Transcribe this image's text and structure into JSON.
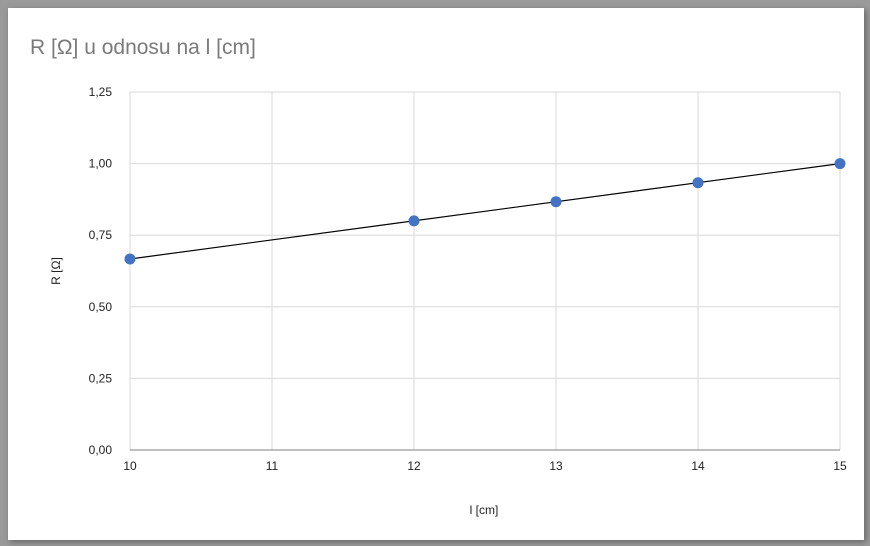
{
  "chart_data": {
    "type": "scatter",
    "title": "R [Ω] u odnosu na l [cm]",
    "xlabel": "l [cm]",
    "ylabel": "R [Ω]",
    "xlim": [
      10,
      15
    ],
    "ylim": [
      0,
      1.25
    ],
    "xticks": [
      10,
      11,
      12,
      13,
      14,
      15
    ],
    "yticks": [
      0,
      0.25,
      0.5,
      0.75,
      1.0,
      1.25
    ],
    "xtick_labels": [
      "10",
      "11",
      "12",
      "13",
      "14",
      "15"
    ],
    "ytick_labels": [
      "0,00",
      "0,25",
      "0,50",
      "0,75",
      "1,00",
      "1,25"
    ],
    "grid": true,
    "series": [
      {
        "x": [
          10,
          12,
          13,
          14,
          15
        ],
        "y": [
          0.667,
          0.8,
          0.867,
          0.933,
          1.0
        ],
        "color": "#4472c4"
      }
    ],
    "trendline": {
      "type": "linear",
      "x": [
        10,
        15
      ],
      "y": [
        0.667,
        1.0
      ],
      "color": "#000000"
    }
  }
}
